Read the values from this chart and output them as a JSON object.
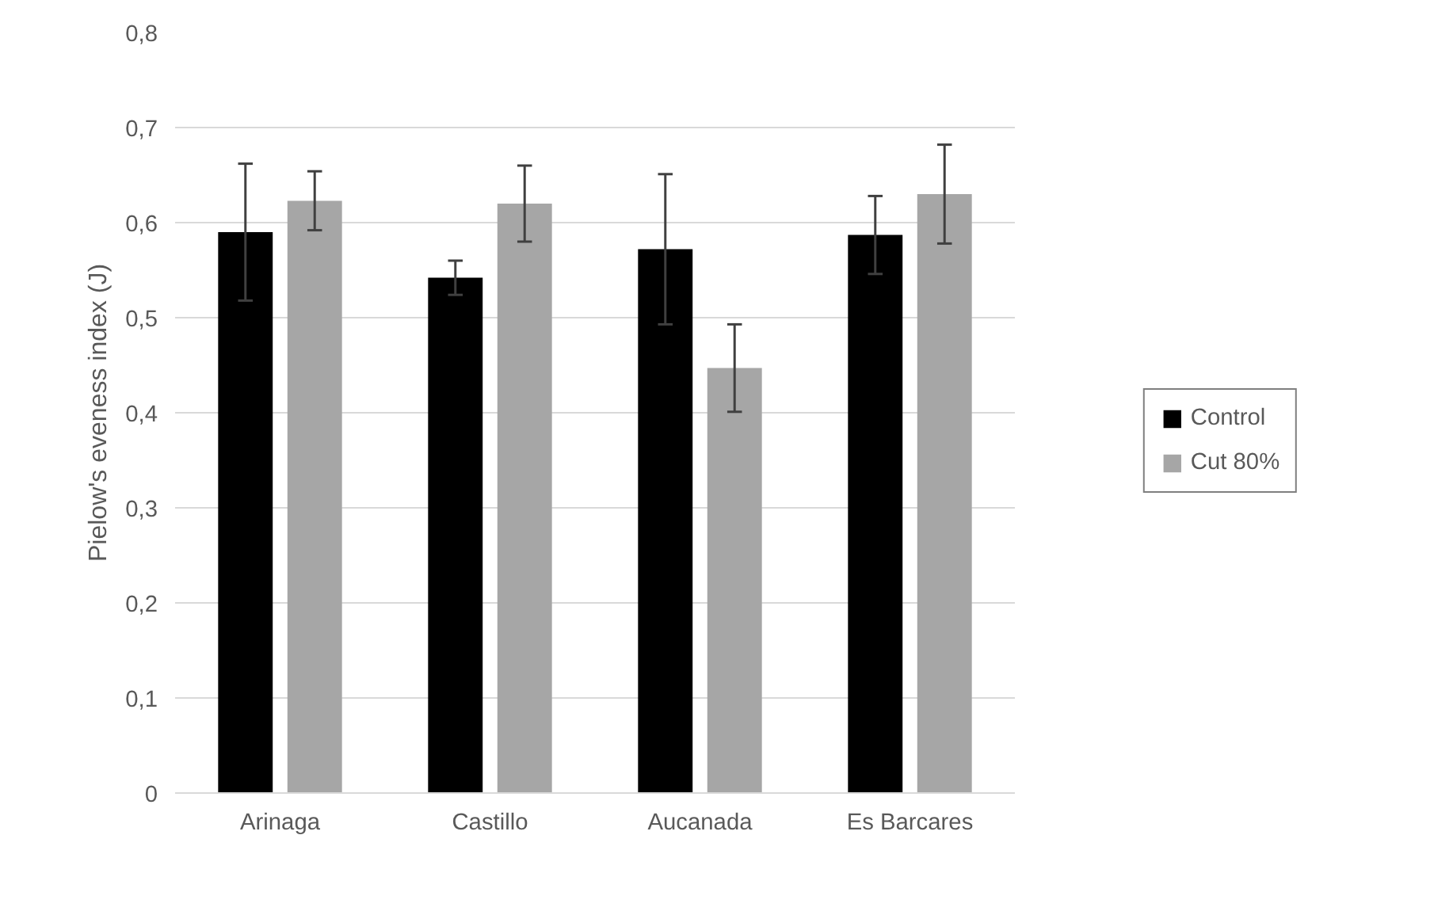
{
  "chart_data": {
    "type": "bar",
    "ylabel": "Pielow's eveness index (J)",
    "categories": [
      "Arinaga",
      "Castillo",
      "Aucanada",
      "Es Barcares"
    ],
    "series": [
      {
        "name": "Control",
        "color": "#000000",
        "values": [
          0.59,
          0.542,
          0.572,
          0.587
        ],
        "errors": [
          0.072,
          0.018,
          0.079,
          0.041
        ]
      },
      {
        "name": "Cut 80%",
        "color": "#a6a6a6",
        "values": [
          0.623,
          0.62,
          0.447,
          0.63
        ],
        "errors": [
          0.031,
          0.04,
          0.046,
          0.052
        ]
      }
    ],
    "ylim": [
      0,
      0.8
    ],
    "yticks": [
      {
        "value": 0,
        "label": "0"
      },
      {
        "value": 0.1,
        "label": "0,1"
      },
      {
        "value": 0.2,
        "label": "0,2"
      },
      {
        "value": 0.3,
        "label": "0,3"
      },
      {
        "value": 0.4,
        "label": "0,4"
      },
      {
        "value": 0.5,
        "label": "0,5"
      },
      {
        "value": 0.6,
        "label": "0,6"
      },
      {
        "value": 0.7,
        "label": "0,7"
      },
      {
        "value": 0.8,
        "label": "0,8"
      }
    ],
    "grid": "y",
    "legend": "right"
  }
}
